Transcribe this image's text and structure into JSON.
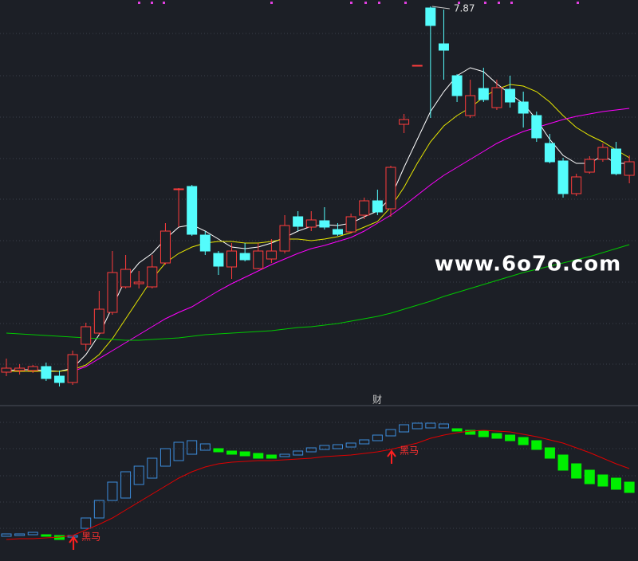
{
  "watermark": "www.6o7o.com",
  "chart_data": [
    {
      "type": "candlestick",
      "high_label": 7.87,
      "up_color": "#ff3c3c",
      "down_color": "#54fcfc",
      "ylim": [
        2.95,
        7.95
      ],
      "candles": [
        [
          3.28,
          3.45,
          3.23,
          3.33
        ],
        [
          3.3,
          3.38,
          3.25,
          3.33
        ],
        [
          3.3,
          3.37,
          3.27,
          3.35
        ],
        [
          3.35,
          3.4,
          3.17,
          3.2
        ],
        [
          3.23,
          3.3,
          3.1,
          3.15
        ],
        [
          3.15,
          3.55,
          3.12,
          3.5
        ],
        [
          3.63,
          3.9,
          3.55,
          3.85
        ],
        [
          3.77,
          4.3,
          3.75,
          4.07
        ],
        [
          4.03,
          4.8,
          4.0,
          4.53
        ],
        [
          4.35,
          4.75,
          4.33,
          4.57
        ],
        [
          4.39,
          4.55,
          4.33,
          4.41
        ],
        [
          4.35,
          4.75,
          4.33,
          4.6
        ],
        [
          4.65,
          5.15,
          4.63,
          5.05
        ],
        [
          5.57,
          5.59,
          5.1,
          5.58
        ],
        [
          5.61,
          5.63,
          4.99,
          5.01
        ],
        [
          5.0,
          5.05,
          4.75,
          4.8
        ],
        [
          4.77,
          4.8,
          4.5,
          4.61
        ],
        [
          4.6,
          4.9,
          4.45,
          4.8
        ],
        [
          4.77,
          4.9,
          4.67,
          4.69
        ],
        [
          4.58,
          4.9,
          4.57,
          4.8
        ],
        [
          4.7,
          4.95,
          4.65,
          4.8
        ],
        [
          4.8,
          5.25,
          4.77,
          5.12
        ],
        [
          5.23,
          5.3,
          5.05,
          5.11
        ],
        [
          5.1,
          5.3,
          5.05,
          5.19
        ],
        [
          5.18,
          5.35,
          5.07,
          5.1
        ],
        [
          5.07,
          5.15,
          4.99,
          5.01
        ],
        [
          5.04,
          5.27,
          5.02,
          5.23
        ],
        [
          5.25,
          5.47,
          5.2,
          5.43
        ],
        [
          5.43,
          5.57,
          5.25,
          5.29
        ],
        [
          5.33,
          5.87,
          5.23,
          5.85
        ],
        [
          6.39,
          6.52,
          6.28,
          6.45
        ],
        [
          7.13,
          7.13,
          7.13,
          7.13
        ],
        [
          7.85,
          7.87,
          6.47,
          7.63
        ],
        [
          7.4,
          7.83,
          6.95,
          7.32
        ],
        [
          7.0,
          7.02,
          6.67,
          6.75
        ],
        [
          6.5,
          6.95,
          6.47,
          6.75
        ],
        [
          6.84,
          7.1,
          6.67,
          6.7
        ],
        [
          6.6,
          6.95,
          6.57,
          6.85
        ],
        [
          6.83,
          7.0,
          6.6,
          6.67
        ],
        [
          6.67,
          6.8,
          6.35,
          6.53
        ],
        [
          6.5,
          6.55,
          6.17,
          6.22
        ],
        [
          6.15,
          6.27,
          5.9,
          5.92
        ],
        [
          5.93,
          5.97,
          5.47,
          5.52
        ],
        [
          5.52,
          5.77,
          5.49,
          5.73
        ],
        [
          5.79,
          5.99,
          5.77,
          5.95
        ],
        [
          5.95,
          6.15,
          5.92,
          6.1
        ],
        [
          6.08,
          6.17,
          5.75,
          5.77
        ],
        [
          5.75,
          6.0,
          5.65,
          5.92
        ]
      ],
      "series": [
        {
          "color": "#ffffff",
          "values": [
            3.3,
            3.31,
            3.31,
            3.3,
            3.29,
            3.33,
            3.5,
            3.75,
            4.1,
            4.45,
            4.65,
            4.77,
            4.95,
            5.1,
            5.13,
            5.05,
            4.95,
            4.85,
            4.83,
            4.85,
            4.9,
            4.97,
            5.05,
            5.11,
            5.13,
            5.12,
            5.15,
            5.23,
            5.3,
            5.47,
            5.85,
            6.2,
            6.55,
            6.8,
            7.0,
            7.1,
            7.05,
            6.9,
            6.77,
            6.65,
            6.45,
            6.2,
            6.0,
            5.9,
            5.9,
            6.0,
            5.9,
            5.9
          ]
        },
        {
          "color": "#e6e600",
          "values": [
            3.29,
            3.29,
            3.29,
            3.29,
            3.29,
            3.31,
            3.37,
            3.5,
            3.7,
            3.95,
            4.2,
            4.45,
            4.65,
            4.77,
            4.85,
            4.9,
            4.92,
            4.92,
            4.9,
            4.9,
            4.92,
            4.95,
            4.95,
            4.93,
            4.95,
            4.98,
            5.03,
            5.1,
            5.17,
            5.35,
            5.6,
            5.9,
            6.17,
            6.37,
            6.5,
            6.6,
            6.73,
            6.83,
            6.89,
            6.87,
            6.8,
            6.67,
            6.5,
            6.35,
            6.25,
            6.17,
            6.07,
            5.97
          ]
        },
        {
          "color": "#ff00ff",
          "values": [
            null,
            null,
            null,
            null,
            null,
            3.29,
            3.35,
            3.45,
            3.55,
            3.65,
            3.75,
            3.85,
            3.95,
            4.03,
            4.1,
            4.2,
            4.3,
            4.39,
            4.47,
            4.55,
            4.63,
            4.7,
            4.77,
            4.83,
            4.87,
            4.92,
            4.97,
            5.05,
            5.15,
            5.25,
            5.37,
            5.5,
            5.63,
            5.75,
            5.85,
            5.95,
            6.05,
            6.15,
            6.23,
            6.3,
            6.35,
            6.4,
            6.45,
            6.49,
            6.52,
            6.55,
            6.57,
            6.59
          ]
        },
        {
          "color": "#00c800",
          "values": [
            3.77,
            3.76,
            3.75,
            3.74,
            3.73,
            3.72,
            3.71,
            3.7,
            3.69,
            3.68,
            3.68,
            3.69,
            3.7,
            3.71,
            3.73,
            3.75,
            3.76,
            3.77,
            3.78,
            3.79,
            3.8,
            3.82,
            3.84,
            3.85,
            3.87,
            3.89,
            3.92,
            3.95,
            3.98,
            4.02,
            4.07,
            4.12,
            4.17,
            4.23,
            4.28,
            4.33,
            4.38,
            4.43,
            4.48,
            4.53,
            4.57,
            4.61,
            4.65,
            4.69,
            4.73,
            4.78,
            4.83,
            4.88
          ]
        }
      ]
    },
    {
      "type": "box-indicator",
      "title": "财",
      "up_color": "#3c8cdc",
      "down_color": "#00f000",
      "line_color": "#e00000",
      "ylim": [
        0,
        19.4
      ],
      "boxes": [
        [
          2.7,
          3.0
        ],
        [
          2.8,
          3.0
        ],
        [
          2.9,
          3.2
        ],
        [
          2.9,
          2.7
        ],
        [
          2.8,
          2.3
        ],
        [
          2.6,
          2.8
        ],
        [
          3.7,
          5.0
        ],
        [
          5.0,
          7.2
        ],
        [
          7.2,
          9.5
        ],
        [
          7.5,
          10.8
        ],
        [
          9.2,
          11.5
        ],
        [
          10.0,
          12.5
        ],
        [
          11.5,
          13.7
        ],
        [
          12.2,
          14.5
        ],
        [
          13.0,
          14.7
        ],
        [
          13.5,
          14.3
        ],
        [
          13.7,
          13.3
        ],
        [
          13.4,
          13.0
        ],
        [
          13.3,
          12.8
        ],
        [
          13.1,
          12.5
        ],
        [
          12.9,
          12.5
        ],
        [
          12.7,
          13.0
        ],
        [
          12.9,
          13.4
        ],
        [
          13.3,
          13.8
        ],
        [
          13.6,
          14.1
        ],
        [
          13.7,
          14.2
        ],
        [
          13.9,
          14.4
        ],
        [
          14.3,
          14.8
        ],
        [
          14.7,
          15.4
        ],
        [
          15.3,
          16.1
        ],
        [
          15.8,
          16.7
        ],
        [
          16.2,
          16.9
        ],
        [
          16.3,
          16.9
        ],
        [
          16.3,
          16.8
        ],
        [
          16.2,
          15.9
        ],
        [
          16.0,
          15.5
        ],
        [
          15.9,
          15.2
        ],
        [
          15.6,
          15.0
        ],
        [
          15.4,
          14.7
        ],
        [
          15.1,
          14.2
        ],
        [
          14.7,
          13.6
        ],
        [
          13.8,
          12.5
        ],
        [
          12.9,
          11.0
        ],
        [
          11.8,
          10.0
        ],
        [
          11.0,
          9.3
        ],
        [
          10.4,
          9.0
        ],
        [
          10.0,
          8.6
        ],
        [
          9.5,
          8.2
        ]
      ],
      "line": [
        2.3,
        2.4,
        2.4,
        2.5,
        2.6,
        2.8,
        3.5,
        4.2,
        5.0,
        6.0,
        7.0,
        8.0,
        9.0,
        10.0,
        10.8,
        11.4,
        11.8,
        12.0,
        12.1,
        12.2,
        12.2,
        12.3,
        12.4,
        12.5,
        12.7,
        12.8,
        12.9,
        13.1,
        13.3,
        13.6,
        14.0,
        14.4,
        15.0,
        15.4,
        15.7,
        15.9,
        16.0,
        15.9,
        15.8,
        15.5,
        15.2,
        14.8,
        14.4,
        13.8,
        13.2,
        12.5,
        11.8,
        11.2
      ],
      "signals": [
        null,
        null,
        null,
        null,
        null,
        "黑马",
        null,
        null,
        null,
        null,
        null,
        null,
        null,
        null,
        null,
        null,
        null,
        null,
        null,
        null,
        null,
        null,
        null,
        null,
        null,
        null,
        null,
        null,
        null,
        "黑马",
        null,
        null,
        null,
        null,
        null,
        null,
        null,
        null,
        null,
        null,
        null,
        null,
        null,
        null,
        null,
        null,
        null,
        null
      ]
    }
  ]
}
